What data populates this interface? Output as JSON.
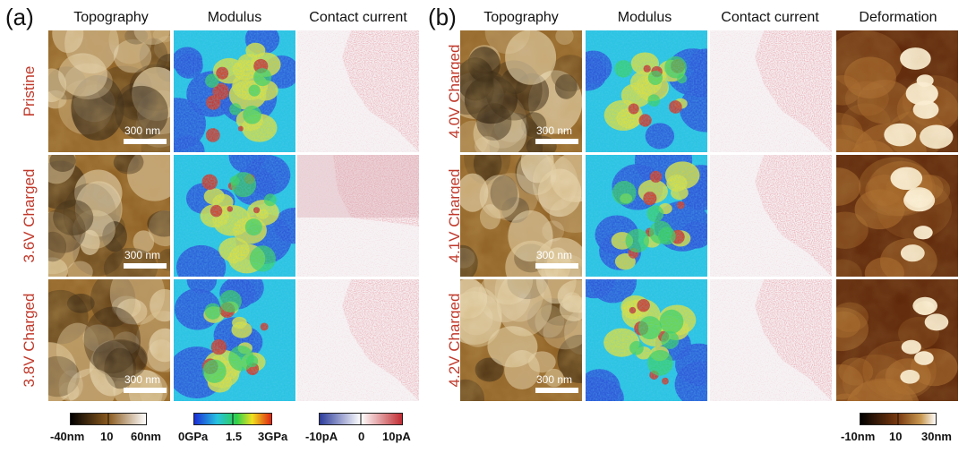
{
  "panel_a": {
    "label": "(a)",
    "columns": [
      "Topography",
      "Modulus",
      "Contact current"
    ],
    "rows": [
      "Pristine",
      "3.6V Charged",
      "3.8V Charged"
    ],
    "scale_bar": "300 nm"
  },
  "panel_b": {
    "label": "(b)",
    "columns": [
      "Topography",
      "Modulus",
      "Contact current",
      "Deformation"
    ],
    "rows": [
      "4.0V Charged",
      "4.1V Charged",
      "4.2V Charged"
    ],
    "scale_bar": "300 nm"
  },
  "colorbars": {
    "topography": {
      "ticks": [
        "-40nm",
        "10",
        "60nm"
      ]
    },
    "modulus": {
      "ticks": [
        "0GPa",
        "1.5",
        "3GPa"
      ]
    },
    "current": {
      "ticks": [
        "-10pA",
        "0",
        "10pA"
      ]
    },
    "deformation": {
      "ticks": [
        "-10nm",
        "10",
        "30nm"
      ]
    }
  },
  "colors": {
    "row_label": "#c0392b",
    "topo_dark": "#1a0e04",
    "topo_mid": "#8a5a1e",
    "topo_light": "#f2e6c8",
    "modulus_blue": "#2a4fd6",
    "modulus_cyan": "#27c3e0",
    "modulus_yellow": "#e8e030",
    "modulus_red": "#d8301c",
    "current_neg": "#3a4fb0",
    "current_pos": "#c0303a"
  }
}
